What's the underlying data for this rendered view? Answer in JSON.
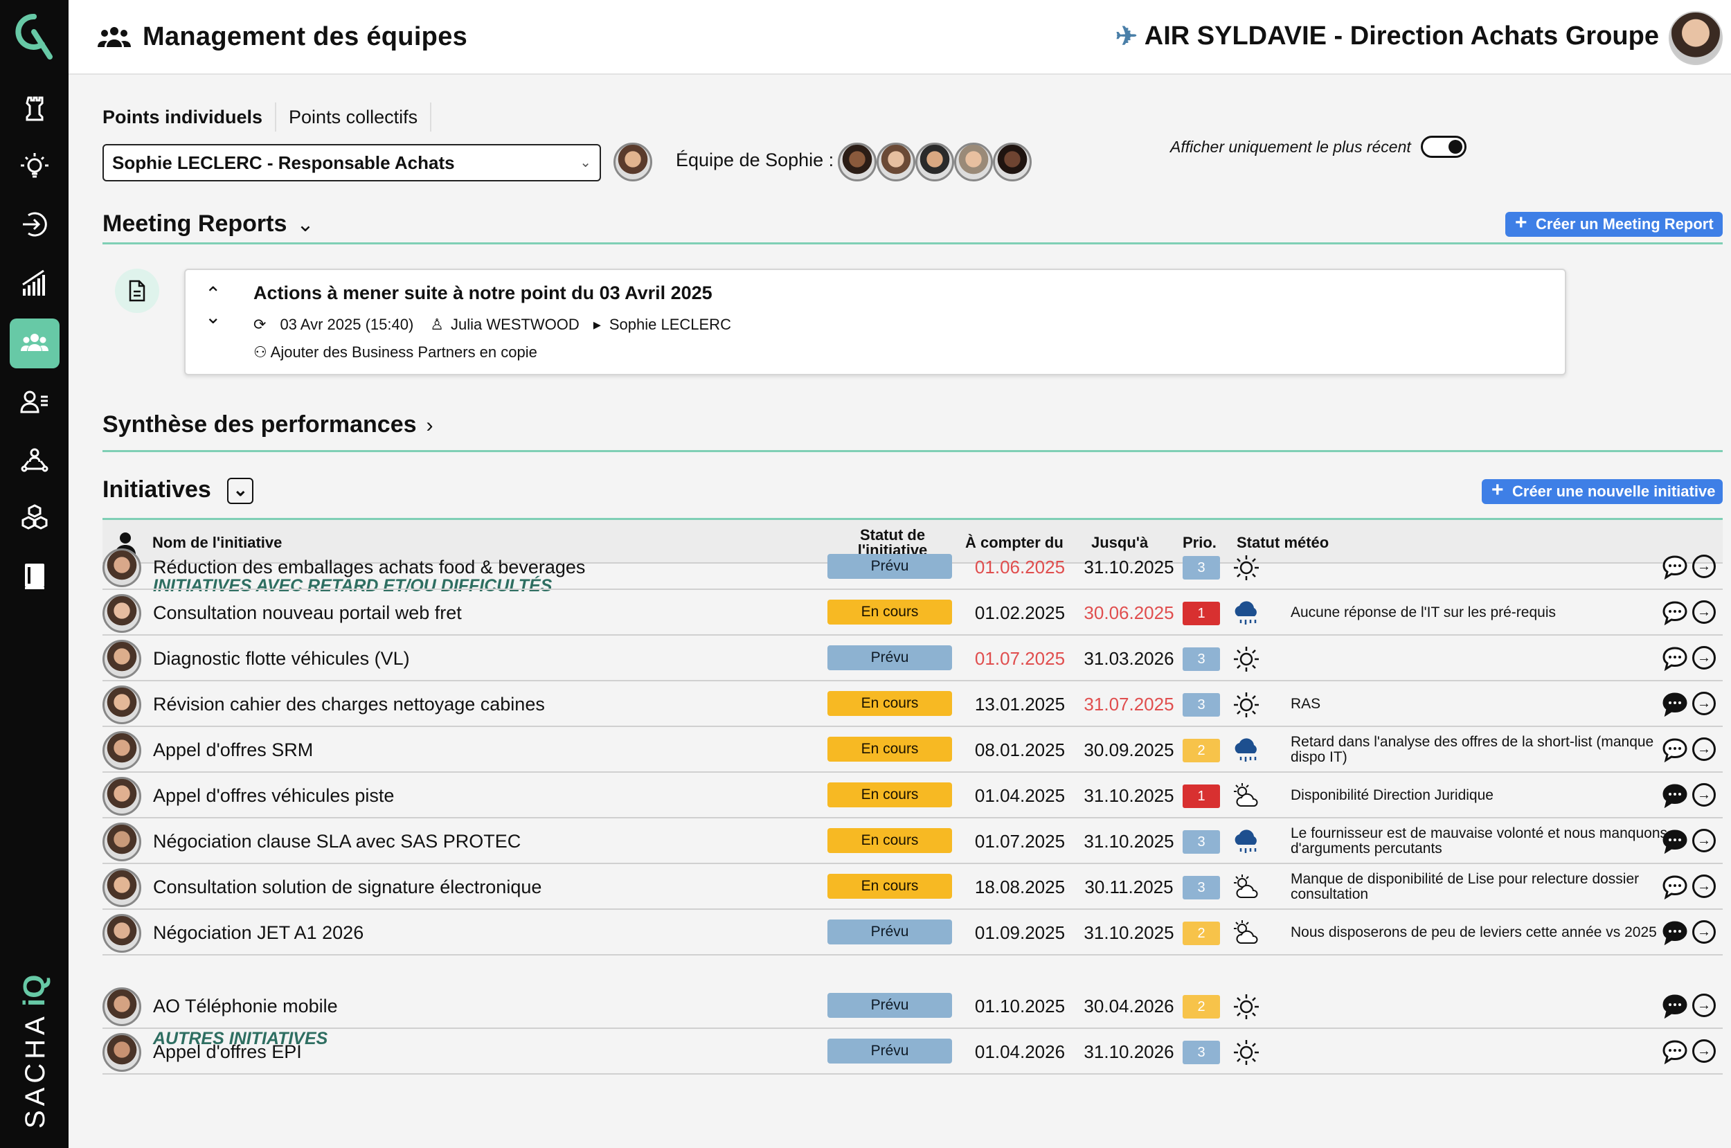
{
  "header": {
    "title": "Management des équipes",
    "company": "AIR SYLDAVIE - Direction Achats Groupe"
  },
  "sidebar": {
    "brand": "SACHAiQ",
    "items": [
      {
        "icon": "chess-rook-icon"
      },
      {
        "icon": "lightbulb-icon"
      },
      {
        "icon": "login-arrow-icon"
      },
      {
        "icon": "bar-chart-icon"
      },
      {
        "icon": "team-icon",
        "active": true
      },
      {
        "icon": "user-list-icon"
      },
      {
        "icon": "network-user-icon"
      },
      {
        "icon": "cubes-icon"
      },
      {
        "icon": "book-icon"
      }
    ]
  },
  "tabs": [
    "Points individuels",
    "Points collectifs"
  ],
  "selector": {
    "value": "Sophie LECLERC - Responsable Achats"
  },
  "team_label": "Équipe de Sophie :",
  "meeting": {
    "title": "Meeting Reports",
    "toggle_label": "Afficher uniquement le plus récent",
    "create_button": "Créer un Meeting Report",
    "report": {
      "title": "Actions à mener suite à notre point du 03 Avril 2025",
      "date": "03 Avr 2025 (15:40)",
      "from": "Julia WESTWOOD",
      "to": "Sophie LECLERC",
      "sub": "Ajouter des Business Partners en copie"
    }
  },
  "synthese": {
    "title": "Synthèse des performances"
  },
  "initiatives": {
    "title": "Initiatives",
    "create_button": "Créer une nouvelle initiative",
    "columns": {
      "name": "Nom de l'initiative",
      "status_line1": "Statut de",
      "status_line2": "l'initiative",
      "from": "À compter du",
      "to": "Jusqu'à",
      "prio": "Prio.",
      "weather": "Statut météo"
    },
    "group1": "INITIATIVES AVEC RETARD ET/OU DIFFICULTÉS",
    "group2": "AUTRES INITIATIVES",
    "rows": [
      {
        "name": "Réduction des emballages achats food & beverages",
        "status": "Prévu",
        "start": "01.06.2025",
        "end": "31.10.2025",
        "prio": "3",
        "weather": "sun",
        "comment": ""
      },
      {
        "name": "Consultation nouveau portail web fret",
        "status": "En cours",
        "start": "01.02.2025",
        "end": "30.06.2025",
        "prio": "1",
        "weather": "rain",
        "comment": "Aucune réponse de l'IT sur les pré-requis"
      },
      {
        "name": "Diagnostic flotte véhicules (VL)",
        "status": "Prévu",
        "start": "01.07.2025",
        "end": "31.03.2026",
        "prio": "3",
        "weather": "sun",
        "comment": ""
      },
      {
        "name": "Révision cahier des charges nettoyage cabines",
        "status": "En cours",
        "start": "13.01.2025",
        "end": "31.07.2025",
        "prio": "3",
        "weather": "sun",
        "comment": "RAS"
      },
      {
        "name": "Appel d'offres SRM",
        "status": "En cours",
        "start": "08.01.2025",
        "end": "30.09.2025",
        "prio": "2",
        "weather": "rain",
        "comment": "Retard dans l'analyse des offres de la short-list (manque dispo IT)"
      },
      {
        "name": "Appel d'offres véhicules piste",
        "status": "En cours",
        "start": "01.04.2025",
        "end": "31.10.2025",
        "prio": "1",
        "weather": "partly",
        "comment": "Disponibilité Direction Juridique"
      },
      {
        "name": "Négociation clause SLA avec SAS PROTEC",
        "status": "En cours",
        "start": "01.07.2025",
        "end": "31.10.2025",
        "prio": "3",
        "weather": "rain",
        "comment": "Le fournisseur est de mauvaise volonté et nous manquons d'arguments percutants"
      },
      {
        "name": "Consultation solution de signature électronique",
        "status": "En cours",
        "start": "18.08.2025",
        "end": "30.11.2025",
        "prio": "3",
        "weather": "partly",
        "comment": "Manque de disponibilité de Lise pour relecture dossier consultation"
      },
      {
        "name": "Négociation JET A1 2026",
        "status": "Prévu",
        "start": "01.09.2025",
        "end": "31.10.2025",
        "prio": "2",
        "weather": "partly",
        "comment": "Nous disposerons de peu de leviers cette année vs 2025"
      },
      {
        "name": "AO Téléphonie mobile",
        "status": "Prévu",
        "start": "01.10.2025",
        "end": "30.04.2026",
        "prio": "2",
        "weather": "sun",
        "comment": ""
      },
      {
        "name": "Appel d'offres EPI",
        "status": "Prévu",
        "start": "01.04.2026",
        "end": "31.10.2026",
        "prio": "3",
        "weather": "sun",
        "comment": ""
      }
    ]
  },
  "colors": {
    "accent": "#67c9a6",
    "blue": "#3e7fe6",
    "late": "#e04e4e",
    "prio1": "#d83030",
    "prio2": "#f7c34a",
    "prio3": "#8fb3d3"
  }
}
